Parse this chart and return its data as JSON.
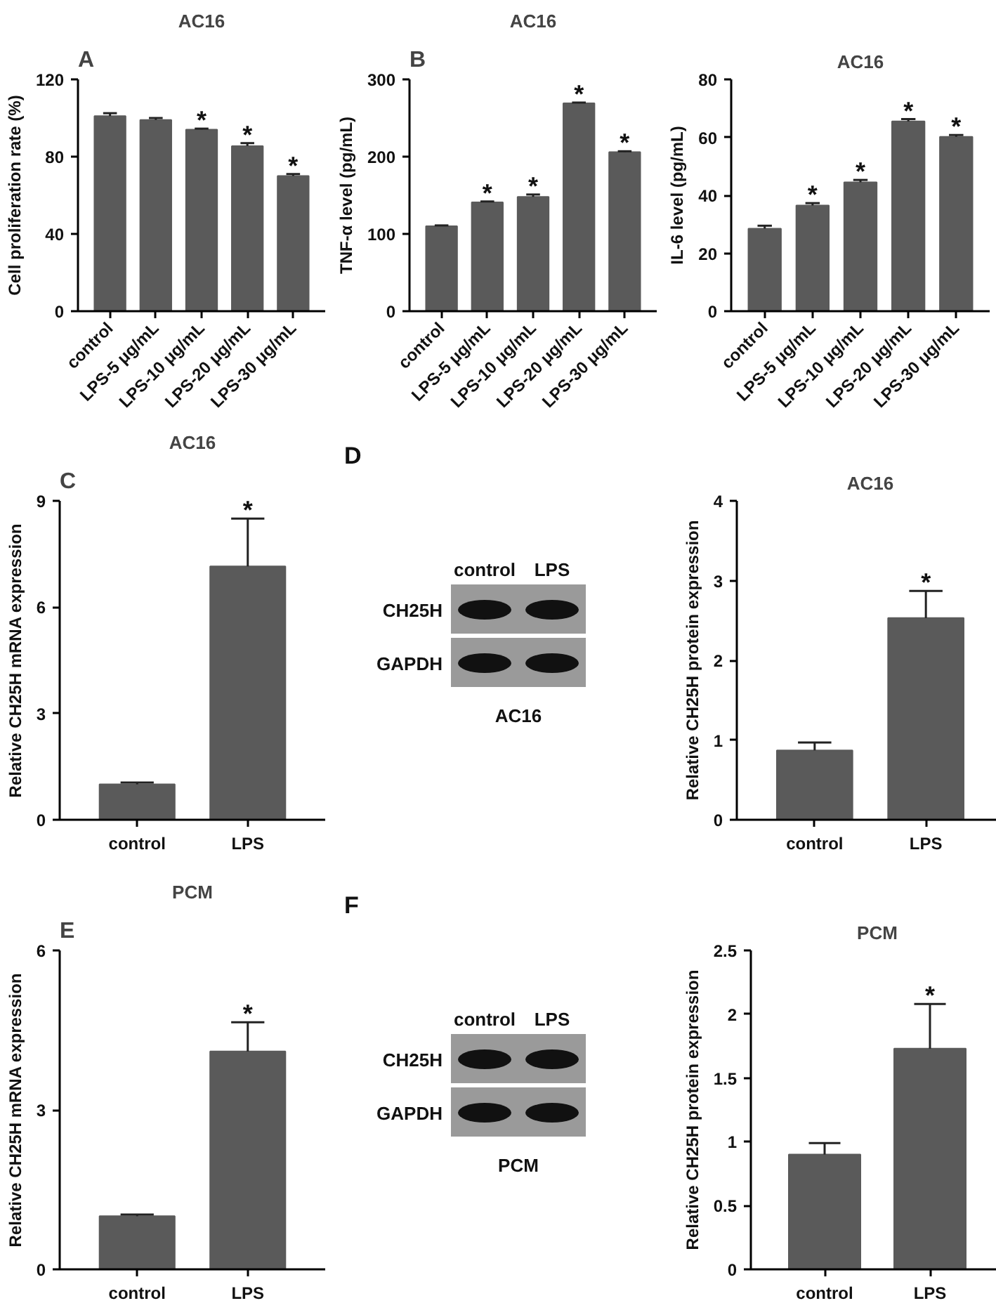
{
  "chart_data": [
    {
      "type": "bar",
      "title": "AC16",
      "annotations": [
        "A",
        {
          "text": "*",
          "x": "LPS-10 μg/mL",
          "y": 94.5
        },
        {
          "text": "*",
          "x": "LPS-20 μg/mL",
          "y": 87
        },
        {
          "text": "*",
          "x": "LPS-30 μg/mL",
          "y": 71
        }
      ],
      "ylabel": "Cell proliferation rate (%)",
      "categories": [
        "control",
        "LPS-5 μg/mL",
        "LPS-10 μg/mL",
        "LPS-20 μg/mL",
        "LPS-30 μg/mL"
      ],
      "values": [
        101,
        99,
        94,
        85.5,
        70
      ],
      "errors": [
        [
          101,
          102.5
        ],
        [
          99,
          100
        ],
        [
          94,
          94.5
        ],
        [
          85.5,
          87
        ],
        [
          70,
          71
        ]
      ],
      "color": "#5a5a5a",
      "ylim": [
        0,
        120
      ],
      "yticks": [
        0,
        40,
        80,
        120
      ]
    },
    {
      "type": "bar",
      "title": "AC16",
      "annotations": [
        "B",
        {
          "text": "*",
          "x": "LPS-5 μg/mL",
          "y": 142
        },
        {
          "text": "*",
          "x": "LPS-10 μg/mL",
          "y": 151
        },
        {
          "text": "*",
          "x": "LPS-20 μg/mL",
          "y": 270
        },
        {
          "text": "*",
          "x": "LPS-30 μg/mL",
          "y": 207
        }
      ],
      "ylabel": "TNF-α level (pg/mL)",
      "categories": [
        "control",
        "LPS-5 μg/mL",
        "LPS-10 μg/mL",
        "LPS-20 μg/mL",
        "LPS-30 μg/mL"
      ],
      "values": [
        110,
        141,
        148,
        269,
        206
      ],
      "errors": [
        [
          110,
          111
        ],
        [
          141,
          142
        ],
        [
          148,
          151
        ],
        [
          269,
          270
        ],
        [
          206,
          207
        ]
      ],
      "color": "#5a5a5a",
      "ylim": [
        0,
        300
      ],
      "yticks": [
        0,
        100,
        200,
        300
      ]
    },
    {
      "type": "bar",
      "title": "AC16",
      "annotations": [
        {
          "text": "*",
          "x": "LPS-5 μg/mL",
          "y": 37.3
        },
        {
          "text": "*",
          "x": "LPS-10 μg/mL",
          "y": 45.3
        },
        {
          "text": "*",
          "x": "LPS-20 μg/mL",
          "y": 66.3
        },
        {
          "text": "*",
          "x": "LPS-30 μg/mL",
          "y": 60.8
        }
      ],
      "ylabel": "IL-6 level (pg/mL)",
      "categories": [
        "control",
        "LPS-5 μg/mL",
        "LPS-10 μg/mL",
        "LPS-20 μg/mL",
        "LPS-30 μg/mL"
      ],
      "values": [
        28.5,
        36.5,
        44.5,
        65.5,
        60.2
      ],
      "errors": [
        [
          28.5,
          29.5
        ],
        [
          36.5,
          37.3
        ],
        [
          44.5,
          45.3
        ],
        [
          65.5,
          66.3
        ],
        [
          60.2,
          60.8
        ]
      ],
      "color": "#5a5a5a",
      "ylim": [
        0,
        80
      ],
      "yticks": [
        0,
        20,
        40,
        60,
        80
      ]
    },
    {
      "type": "bar",
      "title": "AC16",
      "annotations": [
        "C",
        {
          "text": "*",
          "x": "LPS",
          "y": 8.5
        }
      ],
      "ylabel": "Relative CH25H mRNA expression",
      "categories": [
        "control",
        "LPS"
      ],
      "values": [
        1.0,
        7.15
      ],
      "errors": [
        [
          1.0,
          1.05
        ],
        [
          7.15,
          8.5
        ]
      ],
      "color": "#5a5a5a",
      "ylim": [
        0,
        9
      ],
      "yticks": [
        0,
        3,
        6,
        9
      ]
    },
    {
      "type": "other",
      "annotations": [
        "D"
      ],
      "xlabel": "AC16",
      "categories": [
        "control",
        "LPS"
      ],
      "y_categories": [
        "CH25H",
        "GAPDH"
      ]
    },
    {
      "type": "bar",
      "title": "AC16",
      "annotations": [
        {
          "text": "*",
          "x": "LPS",
          "y": 2.87
        }
      ],
      "ylabel": "Relative CH25H protein expression",
      "categories": [
        "control",
        "LPS"
      ],
      "values": [
        0.87,
        2.53
      ],
      "errors": [
        [
          0.87,
          0.97
        ],
        [
          2.53,
          2.87
        ]
      ],
      "color": "#5a5a5a",
      "ylim": [
        0,
        4
      ],
      "yticks": [
        0,
        1,
        2,
        3,
        4
      ]
    },
    {
      "type": "bar",
      "title": "PCM",
      "annotations": [
        "E",
        {
          "text": "*",
          "x": "LPS",
          "y": 4.65
        }
      ],
      "ylabel": "Relative CH25H mRNA expression",
      "categories": [
        "control",
        "LPS"
      ],
      "values": [
        1.0,
        4.1
      ],
      "errors": [
        [
          1.0,
          1.03
        ],
        [
          4.1,
          4.65
        ]
      ],
      "color": "#5a5a5a",
      "ylim": [
        0,
        6
      ],
      "yticks": [
        0,
        3,
        6
      ]
    },
    {
      "type": "other",
      "annotations": [
        "F"
      ],
      "xlabel": "PCM",
      "categories": [
        "control",
        "LPS"
      ],
      "y_categories": [
        "CH25H",
        "GAPDH"
      ]
    },
    {
      "type": "bar",
      "title": "PCM",
      "annotations": [
        {
          "text": "*",
          "x": "LPS",
          "y": 2.08
        }
      ],
      "ylabel": "Relative CH25H protein expression",
      "categories": [
        "control",
        "LPS"
      ],
      "values": [
        0.9,
        1.73
      ],
      "errors": [
        [
          0.9,
          0.99
        ],
        [
          1.73,
          2.08
        ]
      ],
      "color": "#5a5a5a",
      "ylim": [
        0,
        2.5
      ],
      "yticks": [
        0,
        0.5,
        1.0,
        1.5,
        2.0,
        2.5
      ]
    }
  ]
}
